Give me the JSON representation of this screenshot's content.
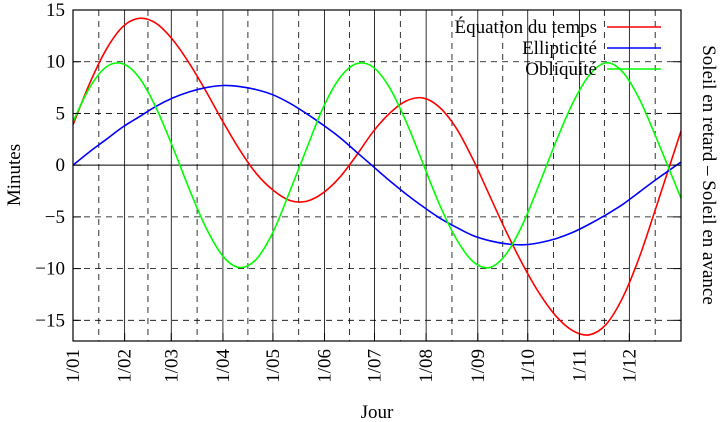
{
  "chart_data": {
    "type": "line",
    "xlabel": "Jour",
    "ylabel": "Minutes",
    "y2label": "Soleil en retard – Soleil  en avance",
    "ylim": [
      -17,
      15
    ],
    "yticks": [
      "15",
      "10",
      "5",
      "0",
      "−5",
      "−10",
      "−15"
    ],
    "ytick_values": [
      15,
      10,
      5,
      0,
      -5,
      -10,
      -15
    ],
    "xlim": [
      0,
      365
    ],
    "xtick_labels": [
      "1/01",
      "1/02",
      "1/03",
      "1/04",
      "1/05",
      "1/06",
      "1/07",
      "1/08",
      "1/09",
      "1/10",
      "1/11",
      "1/12"
    ],
    "xtick_days": [
      0,
      31,
      59,
      90,
      120,
      151,
      181,
      212,
      243,
      273,
      304,
      334
    ],
    "grid": true,
    "legend_position": "top-right",
    "series": [
      {
        "name": "Équation du temps",
        "color": "#ff0000",
        "x": [
          0,
          10,
          20,
          30,
          40,
          50,
          60,
          70,
          80,
          90,
          100,
          110,
          120,
          130,
          140,
          150,
          160,
          170,
          180,
          190,
          200,
          210,
          220,
          230,
          240,
          250,
          260,
          270,
          280,
          290,
          300,
          310,
          320,
          330,
          340,
          350,
          365
        ],
        "y": [
          3.9,
          7.9,
          11.2,
          13.4,
          14.2,
          13.7,
          12.1,
          9.8,
          7.1,
          4.2,
          1.5,
          -0.8,
          -2.4,
          -3.4,
          -3.5,
          -2.7,
          -1.2,
          0.9,
          3.2,
          5.0,
          6.2,
          6.5,
          5.6,
          3.6,
          0.6,
          -2.9,
          -6.4,
          -9.6,
          -12.4,
          -14.6,
          -16.0,
          -16.4,
          -15.4,
          -12.8,
          -8.9,
          -4.1,
          3.3
        ]
      },
      {
        "name": "Ellipticité",
        "color": "#0000ff",
        "x": [
          0,
          10,
          20,
          30,
          40,
          50,
          60,
          70,
          80,
          90,
          100,
          110,
          120,
          130,
          140,
          150,
          160,
          170,
          180,
          190,
          200,
          210,
          220,
          230,
          240,
          250,
          260,
          270,
          280,
          290,
          300,
          310,
          320,
          330,
          340,
          350,
          365
        ],
        "y": [
          0.0,
          1.3,
          2.5,
          3.7,
          4.7,
          5.7,
          6.5,
          7.1,
          7.5,
          7.7,
          7.6,
          7.3,
          6.8,
          6.0,
          5.0,
          3.9,
          2.7,
          1.3,
          -0.1,
          -1.5,
          -2.8,
          -4.0,
          -5.1,
          -6.0,
          -6.8,
          -7.3,
          -7.6,
          -7.7,
          -7.5,
          -7.1,
          -6.5,
          -5.7,
          -4.8,
          -3.8,
          -2.6,
          -1.4,
          0.3
        ]
      },
      {
        "name": "Obliquité",
        "color": "#00ff00",
        "x": [
          0,
          10,
          20,
          30,
          40,
          50,
          60,
          70,
          80,
          90,
          100,
          110,
          120,
          130,
          140,
          150,
          160,
          170,
          180,
          190,
          200,
          210,
          220,
          230,
          240,
          250,
          260,
          270,
          280,
          290,
          300,
          310,
          320,
          330,
          340,
          350,
          365
        ],
        "y": [
          4.2,
          7.5,
          9.5,
          9.8,
          8.4,
          5.5,
          1.7,
          -2.4,
          -6.1,
          -8.8,
          -9.9,
          -9.1,
          -6.5,
          -2.6,
          1.5,
          5.5,
          8.4,
          9.8,
          9.5,
          7.5,
          4.2,
          0.2,
          -3.8,
          -7.1,
          -9.3,
          -9.9,
          -8.6,
          -5.7,
          -1.8,
          2.3,
          6.0,
          8.7,
          9.9,
          9.0,
          6.4,
          2.7,
          -3.2
        ]
      }
    ]
  }
}
